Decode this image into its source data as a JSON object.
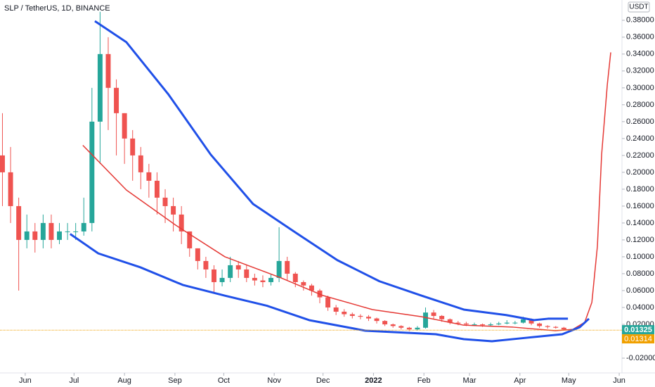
{
  "chart_data": {
    "type": "candlestick",
    "title": "SLP / TetherUS, 1D, BINANCE",
    "currency": "USDT",
    "up_color": "#26a69a",
    "down_color": "#ef5350",
    "x": [
      -14,
      -9,
      -4,
      1,
      6,
      11,
      16,
      21,
      26,
      31,
      36,
      41,
      46,
      51,
      56,
      61,
      66,
      71,
      76,
      81,
      86,
      91,
      96,
      101,
      106,
      111,
      116,
      121,
      126,
      131,
      136,
      141,
      146,
      151,
      156,
      161,
      166,
      171,
      176,
      181,
      186,
      191,
      196,
      201,
      206,
      211,
      216,
      221,
      226,
      231,
      236,
      241,
      246,
      251,
      256,
      261,
      266,
      271,
      276,
      281,
      286,
      291,
      296,
      301,
      306,
      311,
      316,
      321,
      326,
      331,
      336
    ],
    "open": [
      0.22,
      0.2,
      0.16,
      0.12,
      0.13,
      0.12,
      0.14,
      0.12,
      0.13,
      0.13,
      0.13,
      0.14,
      0.26,
      0.34,
      0.3,
      0.27,
      0.24,
      0.22,
      0.2,
      0.19,
      0.17,
      0.16,
      0.15,
      0.13,
      0.11,
      0.095,
      0.085,
      0.07,
      0.075,
      0.09,
      0.085,
      0.075,
      0.072,
      0.07,
      0.075,
      0.095,
      0.08,
      0.07,
      0.066,
      0.06,
      0.052,
      0.04,
      0.035,
      0.032,
      0.03,
      0.029,
      0.027,
      0.024,
      0.02,
      0.018,
      0.016,
      0.014,
      0.016,
      0.034,
      0.03,
      0.026,
      0.022,
      0.021,
      0.02,
      0.02,
      0.019,
      0.02,
      0.021,
      0.022,
      0.022,
      0.026,
      0.021,
      0.018,
      0.017,
      0.016,
      0.014
    ],
    "high": [
      0.27,
      0.23,
      0.17,
      0.15,
      0.14,
      0.15,
      0.15,
      0.14,
      0.14,
      0.14,
      0.17,
      0.3,
      0.39,
      0.36,
      0.31,
      0.27,
      0.25,
      0.23,
      0.21,
      0.2,
      0.18,
      0.17,
      0.16,
      0.13,
      0.11,
      0.1,
      0.09,
      0.085,
      0.1,
      0.095,
      0.09,
      0.08,
      0.078,
      0.08,
      0.135,
      0.1,
      0.082,
      0.072,
      0.068,
      0.062,
      0.054,
      0.043,
      0.038,
      0.034,
      0.032,
      0.031,
      0.028,
      0.025,
      0.021,
      0.019,
      0.017,
      0.018,
      0.04,
      0.037,
      0.031,
      0.027,
      0.024,
      0.023,
      0.022,
      0.021,
      0.022,
      0.023,
      0.025,
      0.024,
      0.029,
      0.027,
      0.022,
      0.019,
      0.018,
      0.017,
      0.0145
    ],
    "low": [
      0.16,
      0.14,
      0.06,
      0.11,
      0.105,
      0.11,
      0.11,
      0.115,
      0.12,
      0.12,
      0.125,
      0.13,
      0.21,
      0.25,
      0.22,
      0.21,
      0.19,
      0.18,
      0.17,
      0.15,
      0.14,
      0.13,
      0.115,
      0.1,
      0.085,
      0.075,
      0.058,
      0.065,
      0.07,
      0.075,
      0.07,
      0.066,
      0.064,
      0.066,
      0.07,
      0.072,
      0.064,
      0.06,
      0.054,
      0.045,
      0.036,
      0.031,
      0.029,
      0.027,
      0.026,
      0.024,
      0.021,
      0.018,
      0.016,
      0.014,
      0.012,
      0.013,
      0.015,
      0.026,
      0.023,
      0.02,
      0.019,
      0.018,
      0.018,
      0.017,
      0.018,
      0.019,
      0.02,
      0.02,
      0.021,
      0.019,
      0.016,
      0.015,
      0.015,
      0.013,
      0.0128
    ],
    "close": [
      0.2,
      0.16,
      0.12,
      0.13,
      0.12,
      0.14,
      0.12,
      0.13,
      0.13,
      0.13,
      0.14,
      0.26,
      0.34,
      0.3,
      0.27,
      0.24,
      0.22,
      0.2,
      0.19,
      0.17,
      0.16,
      0.15,
      0.13,
      0.11,
      0.095,
      0.085,
      0.07,
      0.075,
      0.09,
      0.085,
      0.075,
      0.072,
      0.07,
      0.075,
      0.095,
      0.08,
      0.07,
      0.066,
      0.06,
      0.052,
      0.04,
      0.035,
      0.032,
      0.03,
      0.029,
      0.027,
      0.024,
      0.02,
      0.018,
      0.016,
      0.014,
      0.016,
      0.034,
      0.03,
      0.026,
      0.022,
      0.021,
      0.02,
      0.02,
      0.019,
      0.02,
      0.021,
      0.022,
      0.022,
      0.026,
      0.021,
      0.018,
      0.017,
      0.016,
      0.014,
      0.0133
    ],
    "lines": [
      {
        "color": "#e53935",
        "width": 1.5,
        "x": [
          35.4,
          62.2,
          92.4,
          122.7,
          157.2,
          183.2,
          213.4,
          243.6,
          269.5,
          299.8,
          325.7,
          336.5,
          343.8,
          348.2,
          351.6,
          354.2,
          357.7,
          359.8
        ],
        "values": [
          0.232,
          0.179,
          0.1375,
          0.1,
          0.075,
          0.054,
          0.0375,
          0.029,
          0.019,
          0.0167,
          0.0125,
          0.014,
          0.0225,
          0.046,
          0.1125,
          0.221,
          0.304,
          0.342
        ]
      },
      {
        "color": "#2050e8",
        "width": 3,
        "x": [
          42.8,
          62.2,
          88.1,
          114,
          140,
          165.9,
          191.8,
          217.7,
          243.6,
          269.5,
          295.5,
          312.7,
          321.3,
          333.5
        ],
        "values": [
          0.379,
          0.354,
          0.292,
          0.221,
          0.1625,
          0.129,
          0.096,
          0.071,
          0.054,
          0.0375,
          0.031,
          0.025,
          0.0267,
          0.0267
        ]
      },
      {
        "color": "#2050e8",
        "width": 3,
        "x": [
          27.6,
          44.9,
          70.8,
          96.8,
          122.7,
          148.6,
          174.5,
          209,
          235,
          252.3,
          269.5,
          286.8,
          308.4,
          330,
          340.8,
          346.4
        ],
        "values": [
          0.127,
          0.104,
          0.0875,
          0.0667,
          0.054,
          0.042,
          0.025,
          0.0125,
          0.01,
          0.0083,
          0.0025,
          0,
          0.0042,
          0.0083,
          0.0167,
          0.0267
        ]
      }
    ],
    "price_line": {
      "value": 0.01314,
      "color": "#f0a000"
    },
    "last_price": {
      "value": 0.01325,
      "color": "#26a69a"
    },
    "xlim": [
      -15.5,
      366.7
    ],
    "ylim": [
      -0.0375,
      0.404
    ],
    "xticks": [
      {
        "value": 0,
        "label": "Jun"
      },
      {
        "value": 30,
        "label": "Jul"
      },
      {
        "value": 61,
        "label": "Aug"
      },
      {
        "value": 92,
        "label": "Sep"
      },
      {
        "value": 122,
        "label": "Oct"
      },
      {
        "value": 153,
        "label": "Nov"
      },
      {
        "value": 183,
        "label": "Dec"
      },
      {
        "value": 214,
        "label": "2022"
      },
      {
        "value": 245,
        "label": "Feb"
      },
      {
        "value": 273,
        "label": "Mar"
      },
      {
        "value": 304,
        "label": "Apr"
      },
      {
        "value": 334,
        "label": "May"
      },
      {
        "value": 365,
        "label": "Jun"
      }
    ],
    "yticks": [
      {
        "value": -0.02,
        "label": "-0.02000"
      },
      {
        "value": 0.02,
        "label": "0.02000"
      },
      {
        "value": 0.04,
        "label": "0.04000"
      },
      {
        "value": 0.06,
        "label": "0.06000"
      },
      {
        "value": 0.08,
        "label": "0.08000"
      },
      {
        "value": 0.1,
        "label": "0.10000"
      },
      {
        "value": 0.12,
        "label": "0.12000"
      },
      {
        "value": 0.14,
        "label": "0.14000"
      },
      {
        "value": 0.16,
        "label": "0.16000"
      },
      {
        "value": 0.18,
        "label": "0.18000"
      },
      {
        "value": 0.2,
        "label": "0.20000"
      },
      {
        "value": 0.22,
        "label": "0.22000"
      },
      {
        "value": 0.24,
        "label": "0.24000"
      },
      {
        "value": 0.26,
        "label": "0.26000"
      },
      {
        "value": 0.28,
        "label": "0.28000"
      },
      {
        "value": 0.3,
        "label": "0.30000"
      },
      {
        "value": 0.32,
        "label": "0.32000"
      },
      {
        "value": 0.34,
        "label": "0.34000"
      },
      {
        "value": 0.36,
        "label": "0.36000"
      },
      {
        "value": 0.38,
        "label": "0.38000"
      }
    ],
    "price_labels": [
      "0.01325",
      "0.01314"
    ]
  }
}
